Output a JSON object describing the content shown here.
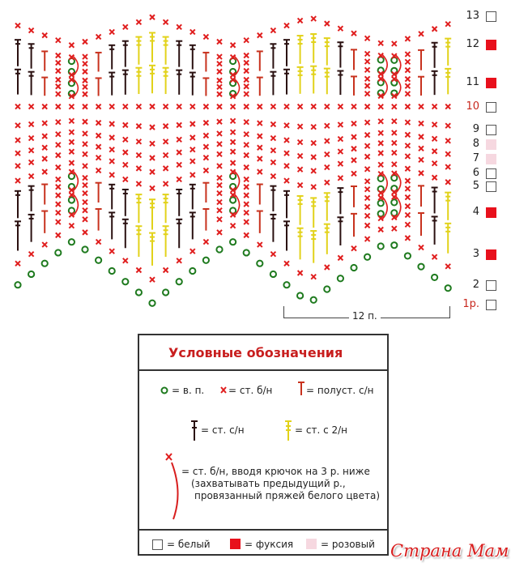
{
  "colors": {
    "chain": "#1e7a1e",
    "sc": "#e01e1e",
    "hdc": "#c8321e",
    "dc": "#2a1010",
    "dc2": "#e2d21a",
    "fuchsia": "#e8101c",
    "pink": "#f6d8e0",
    "white": "#ffffff"
  },
  "rows": [
    {
      "label": "13",
      "color": "white"
    },
    {
      "label": "12",
      "color": "fuchsia"
    },
    {
      "label": "11",
      "color": "fuchsia"
    },
    {
      "label": "10",
      "color": "white",
      "red": true
    },
    {
      "label": "9",
      "color": "white"
    },
    {
      "label": "8",
      "color": "pink"
    },
    {
      "label": "7",
      "color": "pink"
    },
    {
      "label": "6",
      "color": "white"
    },
    {
      "label": "5",
      "color": "white"
    },
    {
      "label": "4",
      "color": "fuchsia"
    },
    {
      "label": "3",
      "color": "fuchsia"
    },
    {
      "label": "2",
      "color": "white"
    },
    {
      "label": "1р.",
      "color": "white",
      "red": true
    }
  ],
  "repeat_label": "12 п.",
  "legend": {
    "title": "Условные обозначения",
    "chain": "= в. п.",
    "sc": "= ст. б/н",
    "hdc": "= полуст. с/н",
    "dc": "= ст. с/н",
    "dc2": "= ст. с 2/н",
    "spike_line1": "= ст. б/н, вводя крючок на 3 р. ниже",
    "spike_line2": "(захватывать предыдущий р.,",
    "spike_line3": "провязанный пряжей белого цвета)",
    "white": "= белый",
    "fuchsia": "= фуксия",
    "pink": "= розовый"
  },
  "watermark": "Страна Мам"
}
